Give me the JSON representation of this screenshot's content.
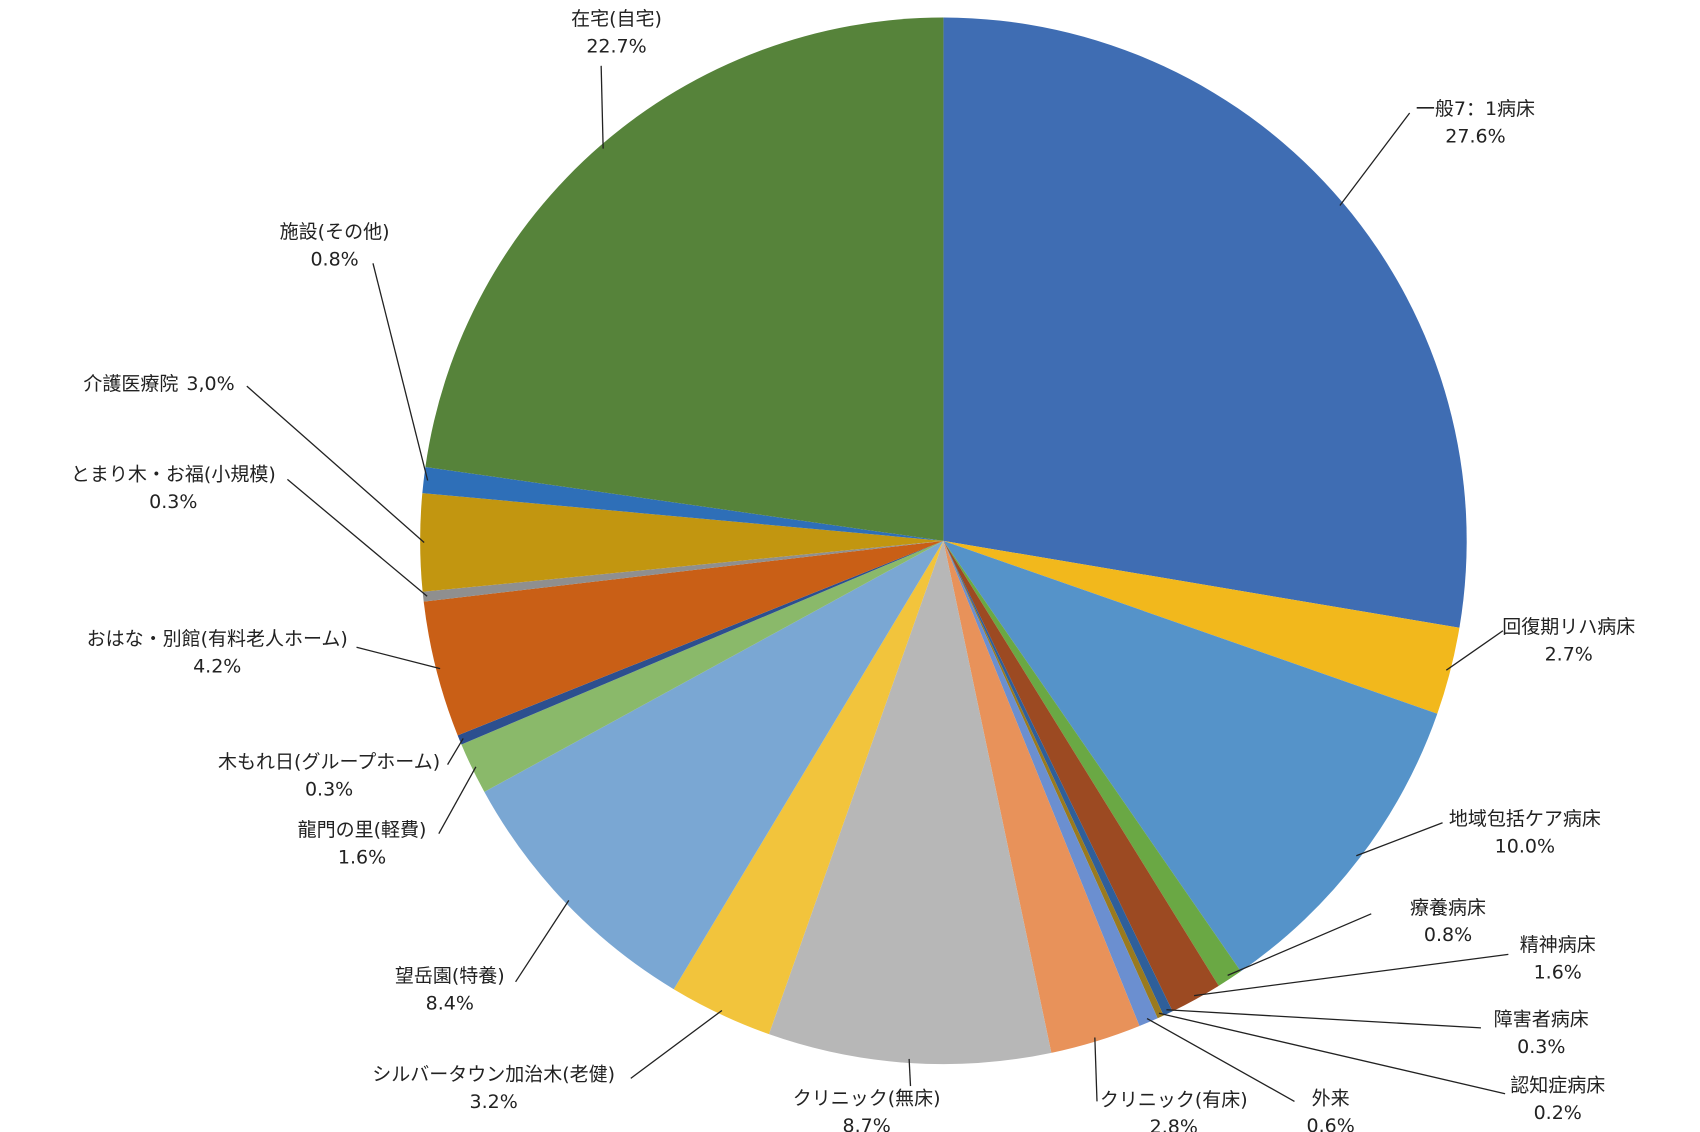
{
  "chart_data": {
    "type": "pie",
    "categories": [
      "一般7：1病床",
      "回復期リハ病床",
      "地域包括ケア病床",
      "療養病床",
      "精神病床",
      "障害者病床",
      "認知症病床",
      "外来",
      "クリニック(有床)",
      "クリニック(無床)",
      "シルバータウン加治木(老健)",
      "望岳園(特養)",
      "龍門の里(軽費)",
      "木もれ日(グループホーム)",
      "おはな・別館(有料老人ホーム)",
      "とまり木・お福(小規模)",
      "介護医療院",
      "施設(その他)",
      "在宅(自宅)"
    ],
    "values": [
      27.6,
      2.7,
      10.0,
      0.8,
      1.6,
      0.3,
      0.2,
      0.6,
      2.8,
      8.7,
      3.2,
      8.4,
      1.6,
      0.3,
      4.2,
      0.3,
      3.0,
      0.8,
      22.7
    ],
    "value_labels": [
      "27.6%",
      "2.7%",
      "10.0%",
      "0.8%",
      "1.6%",
      "0.3%",
      "0.2%",
      "0.6%",
      "2.8%",
      "8.7%",
      "3.2%",
      "8.4%",
      "1.6%",
      "0.3%",
      "4.2%",
      "0.3%",
      "3,0%",
      "0.8%",
      "22.7%"
    ],
    "colors": [
      "#3f6db3",
      "#f2b81c",
      "#5593c9",
      "#6aa844",
      "#9c4a22",
      "#2f5f9a",
      "#9a7a1e",
      "#6b8fd0",
      "#e8925a",
      "#b7b7b7",
      "#f2c43c",
      "#7aa7d3",
      "#8ab96a",
      "#2c4f8f",
      "#c95f16",
      "#8f8f8f",
      "#c29610",
      "#2e6fb8",
      "#56833a"
    ]
  }
}
